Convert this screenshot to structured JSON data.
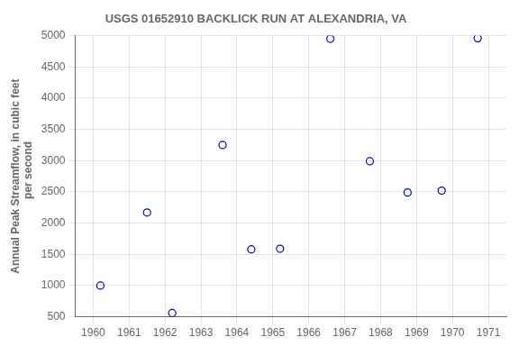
{
  "chart_data": {
    "type": "scatter",
    "title": "USGS 01652910 BACKLICK RUN AT ALEXANDRIA, VA",
    "ylabel": [
      "Annual Peak Streamflow, in cubic feet",
      "    per second"
    ],
    "x": [
      1960.2,
      1961.5,
      1962.2,
      1963.6,
      1964.4,
      1965.2,
      1966.6,
      1967.7,
      1968.75,
      1969.7,
      1970.7
    ],
    "values": [
      1000,
      2170,
      560,
      3250,
      1580,
      1590,
      4950,
      2990,
      2490,
      2520,
      4960
    ],
    "color": "#0000CC",
    "marker": "circle",
    "xlim": [
      1959.5,
      1971.5
    ],
    "ylim": [
      500,
      5000
    ],
    "xticks": [
      1960,
      1961,
      1962,
      1963,
      1964,
      1965,
      1966,
      1967,
      1968,
      1969,
      1970,
      1971
    ],
    "yticks": [
      500,
      1000,
      1500,
      2000,
      2500,
      3000,
      3500,
      4000,
      4500,
      5000
    ],
    "grid": true
  }
}
